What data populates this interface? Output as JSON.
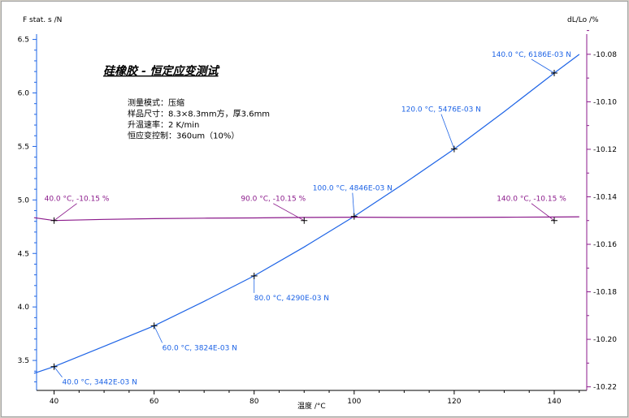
{
  "chart_data": {
    "type": "line",
    "title": "硅橡胶 - 恒定应变测试",
    "xlabel": "温度 /°C",
    "ylabel": "F stat. s /N",
    "y2label": "dL/Lo /%",
    "xlim": [
      36.5,
      146.5
    ],
    "ylim": [
      3.22,
      6.55
    ],
    "y2lim": [
      -10.2215,
      -10.0715
    ],
    "xticks": [
      "40",
      "60",
      "80",
      "100",
      "120",
      "140"
    ],
    "yticks": [
      "3.5",
      "4.0",
      "4.5",
      "5.0",
      "5.5",
      "6.0",
      "6.5"
    ],
    "y2ticks": [
      "-10.08",
      "-10.10",
      "-10.12",
      "-10.14",
      "-10.16",
      "-10.18",
      "-10.20",
      "-10.22"
    ],
    "info_lines": [
      "测量模式：压缩",
      "样品尺寸：8.3×8.3mm方，厚3.6mm",
      "升温速率：2 K/min",
      "恒应变控制：360um（10%）"
    ],
    "grid": false,
    "series": [
      {
        "name": "F stat. s",
        "axis": "left",
        "color": "#1e64e6",
        "x": [
          36,
          40,
          50,
          60,
          70,
          80,
          90,
          100,
          110,
          120,
          130,
          140,
          145
        ],
        "y": [
          3.38,
          3.442,
          3.632,
          3.824,
          4.052,
          4.29,
          4.56,
          4.846,
          5.155,
          5.476,
          5.825,
          6.186,
          6.36
        ],
        "markers": [
          {
            "x": 40,
            "y": 3.442,
            "label": "40.0 °C, 3442E-03 N"
          },
          {
            "x": 60,
            "y": 3.824,
            "label": "60.0 °C, 3824E-03 N"
          },
          {
            "x": 80,
            "y": 4.29,
            "label": "80.0 °C, 4290E-03 N"
          },
          {
            "x": 100,
            "y": 4.846,
            "label": "100.0 °C, 4846E-03 N"
          },
          {
            "x": 120,
            "y": 5.476,
            "label": "120.0 °C, 5476E-03 N"
          },
          {
            "x": 140,
            "y": 6.186,
            "label": "140.0 °C, 6186E-03 N"
          }
        ]
      },
      {
        "name": "dL/Lo",
        "axis": "right",
        "color": "#8b1a8b",
        "x": [
          36,
          40,
          50,
          60,
          70,
          80,
          90,
          100,
          110,
          120,
          130,
          140,
          145
        ],
        "y": [
          -10.1488,
          -10.15,
          -10.1495,
          -10.1492,
          -10.149,
          -10.1489,
          -10.1487,
          -10.1486,
          -10.1487,
          -10.1487,
          -10.1486,
          -10.1485,
          -10.1484
        ],
        "markers": [
          {
            "x": 40,
            "y": -10.15,
            "label": "40.0 °C, -10.15 %"
          },
          {
            "x": 90,
            "y": -10.15,
            "label": "90.0 °C, -10.15 %"
          },
          {
            "x": 140,
            "y": -10.15,
            "label": "140.0 °C, -10.15 %"
          }
        ]
      }
    ]
  }
}
